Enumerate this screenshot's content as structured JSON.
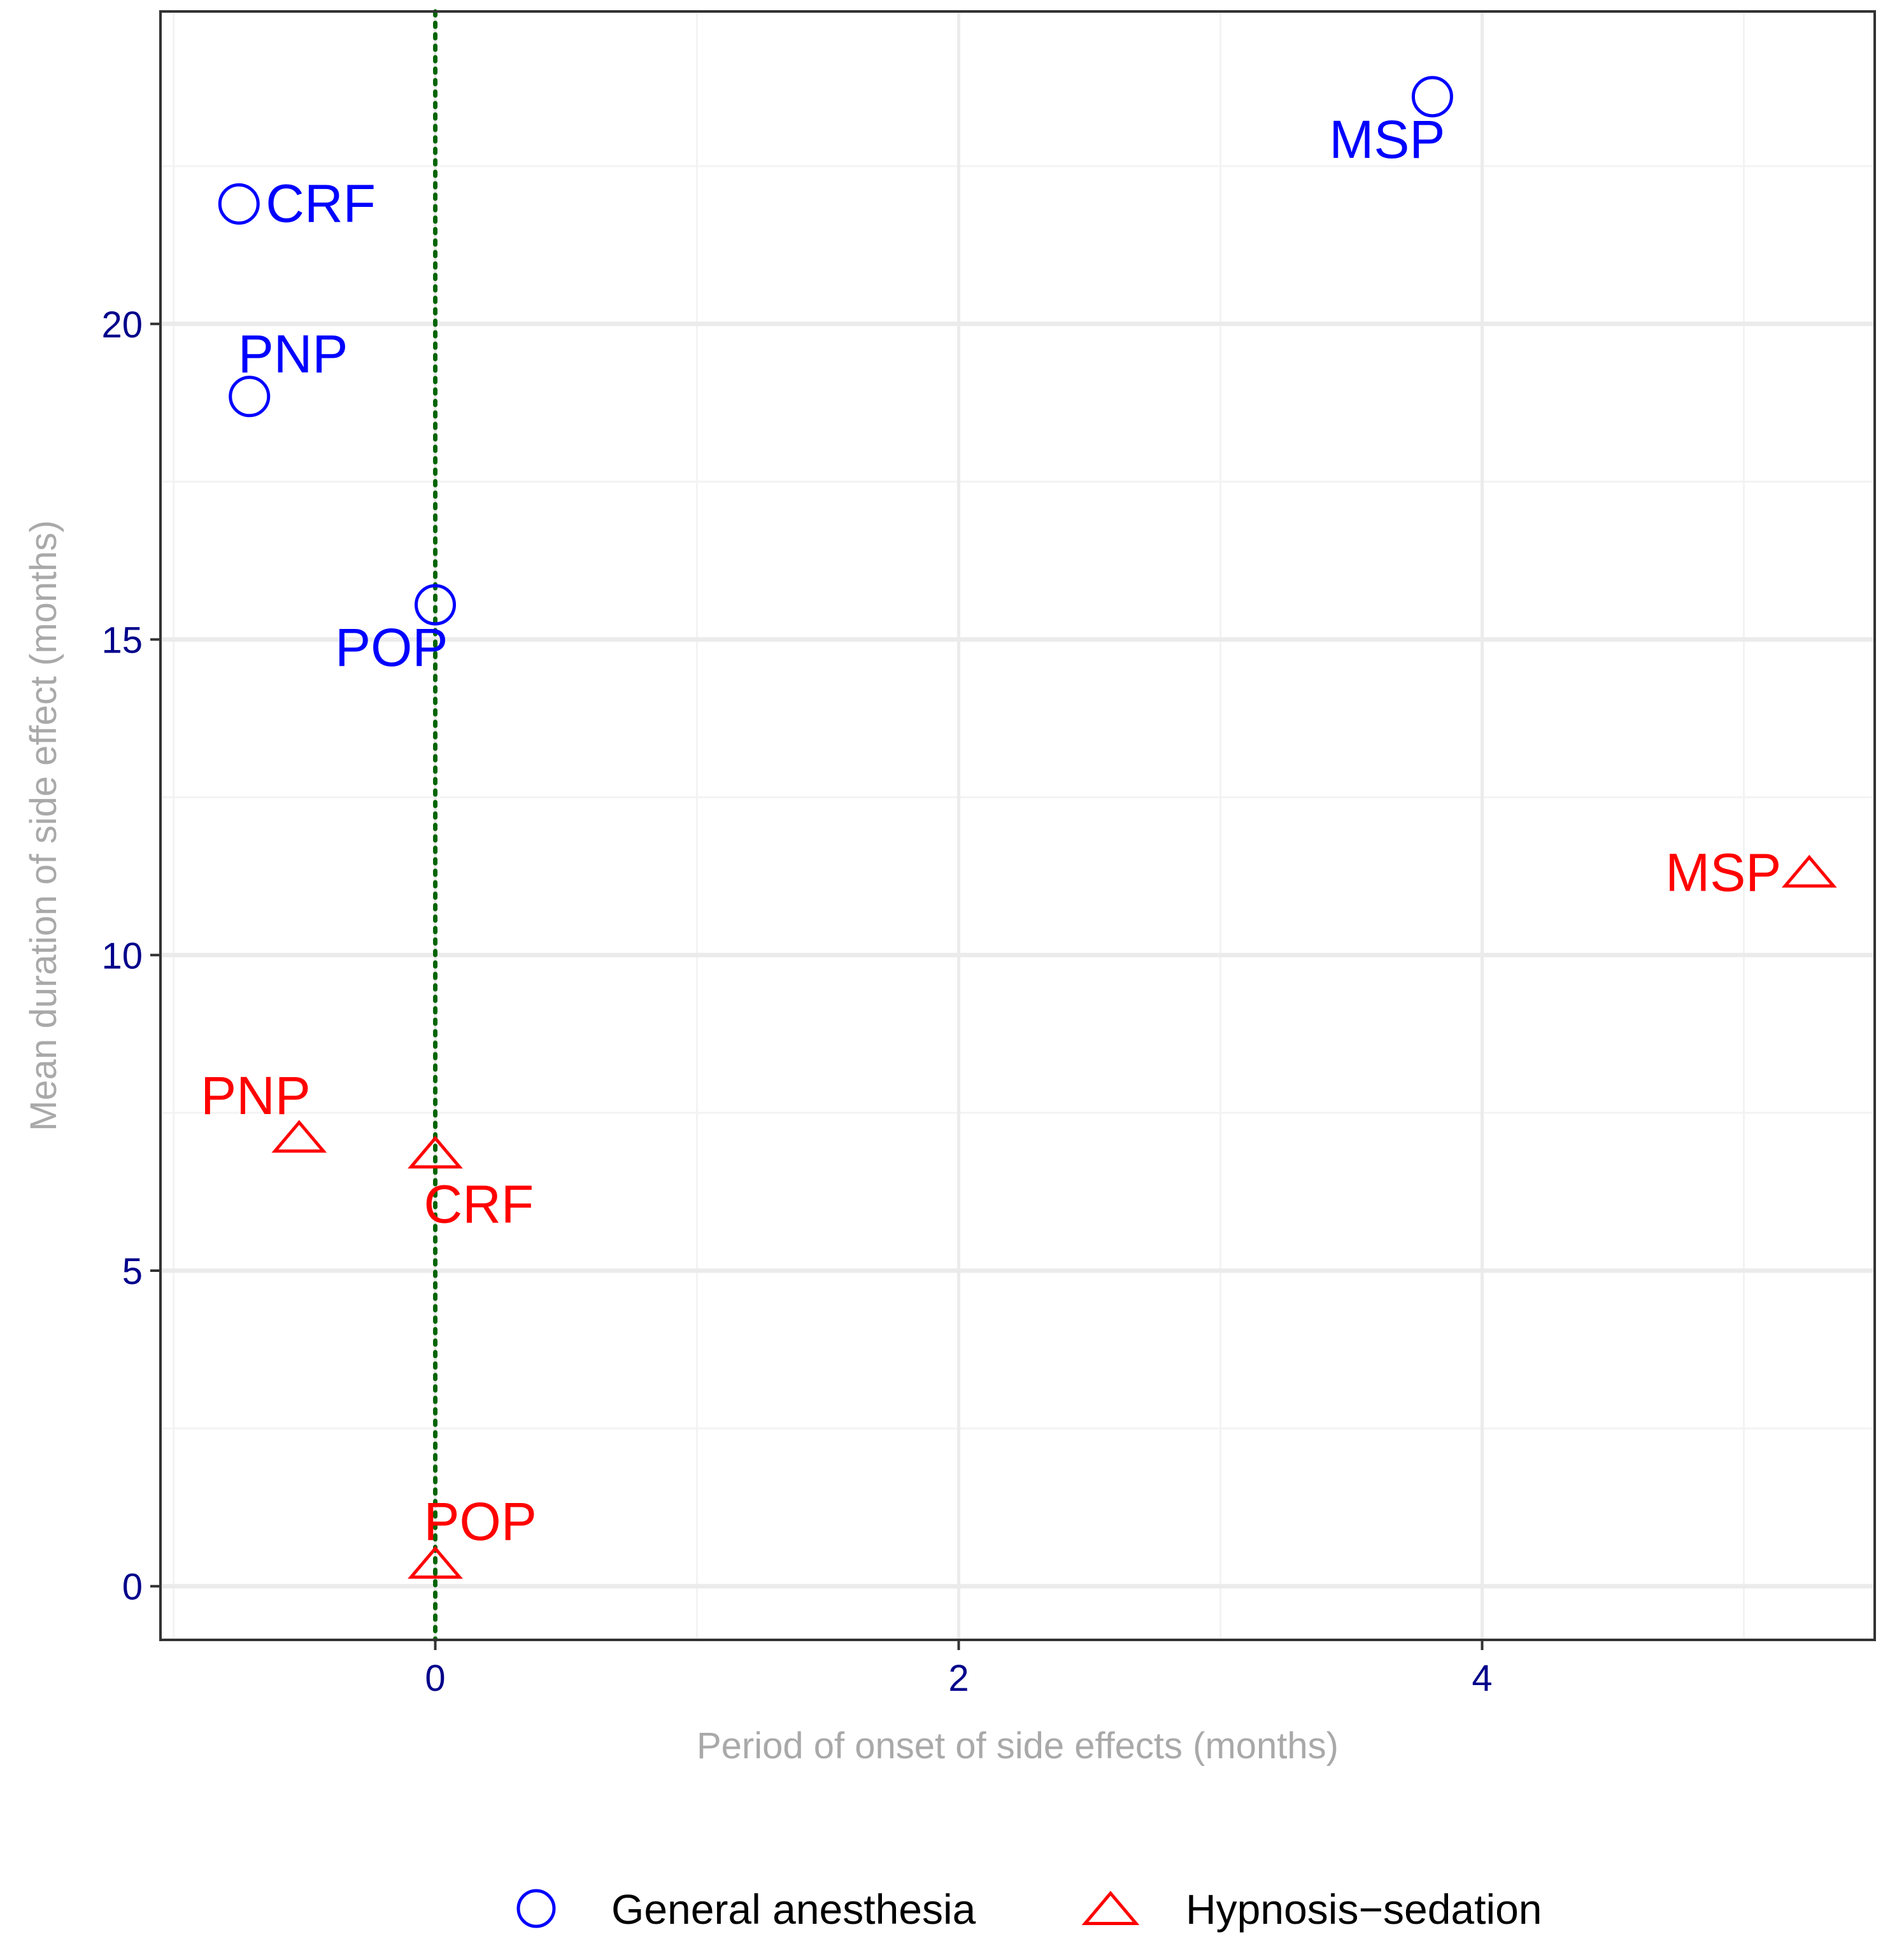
{
  "chart_data": {
    "type": "scatter",
    "title": "",
    "xlabel": "Period of onset of side effects (months)",
    "ylabel": "Mean duration of side effect (months)",
    "xlim": [
      -1.05,
      5.5
    ],
    "ylim": [
      -0.85,
      24.95
    ],
    "x_ticks": [
      "0",
      "2",
      "4"
    ],
    "x_tick_values": [
      0,
      2,
      4
    ],
    "y_ticks": [
      "0",
      "5",
      "10",
      "15",
      "20"
    ],
    "y_tick_values": [
      0,
      5,
      10,
      15,
      20
    ],
    "reference_line_x": 0,
    "grid": true,
    "legend_position": "bottom",
    "series": [
      {
        "name": "General anesthesia",
        "marker": "circle",
        "color": "#0000ff",
        "points": [
          {
            "label": "CRF",
            "x": -0.75,
            "y": 21.9,
            "label_side": "right"
          },
          {
            "label": "PNP",
            "x": -0.71,
            "y": 18.85,
            "label_side": "above-right"
          },
          {
            "label": "POP",
            "x": 0.0,
            "y": 15.55,
            "label_side": "below-left"
          },
          {
            "label": "MSP",
            "x": 3.81,
            "y": 23.6,
            "label_side": "below-left"
          }
        ]
      },
      {
        "name": "Hypnosis−sedation",
        "marker": "triangle",
        "color": "#ff0000",
        "points": [
          {
            "label": "PNP",
            "x": -0.52,
            "y": 7.1,
            "label_side": "above-left"
          },
          {
            "label": "CRF",
            "x": 0.0,
            "y": 6.85,
            "label_side": "below-right"
          },
          {
            "label": "POP",
            "x": 0.0,
            "y": 0.35,
            "label_side": "above-right"
          },
          {
            "label": "MSP",
            "x": 5.25,
            "y": 11.3,
            "label_side": "left"
          }
        ]
      }
    ]
  },
  "colors": {
    "tick_text": "#00008b",
    "axis_title": "#a9a9a9",
    "grid_major": "#ebebeb",
    "grid_minor": "#f3f3f3",
    "panel_border": "#333333",
    "reference_line": "#006400"
  }
}
